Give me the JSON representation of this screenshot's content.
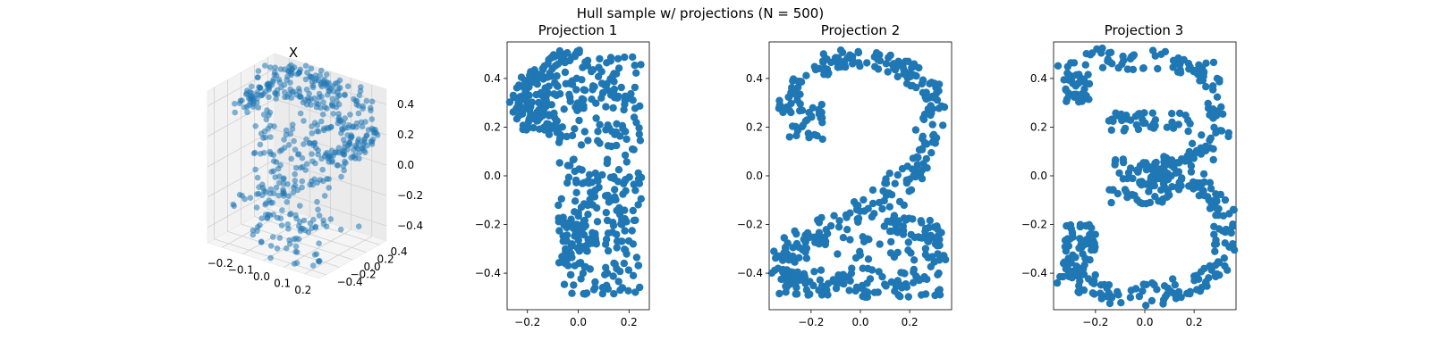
{
  "figure": {
    "suptitle": "Hull sample w/ projections (N = 500)",
    "marker_color": "#1f77b4"
  },
  "chart_data": [
    {
      "type": "scatter3d",
      "title": "X",
      "n_points": 500,
      "x_ticks": [
        "−0.2",
        "−0.1",
        "0.0",
        "0.1",
        "0.2"
      ],
      "y_ticks": [
        "−0.4",
        "−0.2",
        "0.0",
        "0.2",
        "0.4"
      ],
      "z_ticks": [
        "−0.4",
        "−0.2",
        "0.0",
        "0.2",
        "0.4"
      ],
      "xlim": [
        -0.27,
        0.27
      ],
      "ylim": [
        -0.5,
        0.5
      ],
      "zlim": [
        -0.5,
        0.5
      ],
      "grid": true,
      "shape": "digits 1, 2, 3 stacked along the depth axis"
    },
    {
      "type": "scatter",
      "title": "Projection 1",
      "shape": "digit 1",
      "n_points": 500,
      "xlim": [
        -0.28,
        0.28
      ],
      "ylim": [
        -0.55,
        0.55
      ],
      "x_ticks": [
        "−0.2",
        "0.0",
        "0.2"
      ],
      "y_ticks": [
        "−0.4",
        "−0.2",
        "0.0",
        "0.2",
        "0.4"
      ]
    },
    {
      "type": "scatter",
      "title": "Projection 2",
      "shape": "digit 2",
      "n_points": 500,
      "xlim": [
        -0.37,
        0.37
      ],
      "ylim": [
        -0.55,
        0.55
      ],
      "x_ticks": [
        "−0.2",
        "0.0",
        "0.2"
      ],
      "y_ticks": [
        "−0.4",
        "−0.2",
        "0.0",
        "0.2",
        "0.4"
      ]
    },
    {
      "type": "scatter",
      "title": "Projection 3",
      "shape": "digit 3",
      "n_points": 500,
      "xlim": [
        -0.37,
        0.37
      ],
      "ylim": [
        -0.55,
        0.55
      ],
      "x_ticks": [
        "−0.2",
        "0.0",
        "0.2"
      ],
      "y_ticks": [
        "−0.4",
        "−0.2",
        "0.0",
        "0.2",
        "0.4"
      ]
    }
  ]
}
